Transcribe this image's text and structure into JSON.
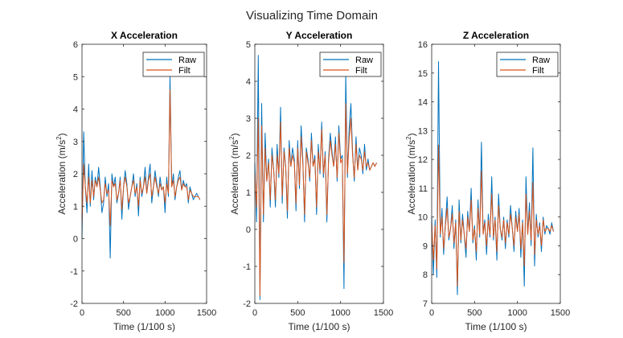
{
  "figure": {
    "title": "Visualizing Time Domain",
    "colors": {
      "raw": "#0072BD",
      "filt": "#D95319",
      "axis": "#262626"
    }
  },
  "chart_data": [
    {
      "type": "line",
      "title": "X Acceleration",
      "xlabel": "Time (1/100 s)",
      "ylabel": "Acceleration (m/s²)",
      "ylabel_parts": [
        "Acceleration (m/s",
        "2",
        ")"
      ],
      "xlim": [
        0,
        1500
      ],
      "ylim": [
        -2,
        6
      ],
      "xticks": [
        0,
        500,
        1000,
        1500
      ],
      "yticks": [
        -2,
        -1,
        0,
        1,
        2,
        3,
        4,
        5,
        6
      ],
      "grid": false,
      "legend": {
        "position": "top-right",
        "entries": [
          "Raw",
          "Filt"
        ]
      },
      "series": [
        {
          "name": "Raw",
          "color": "#0072BD",
          "x_step": 20,
          "values": [
            0.0,
            3.3,
            1.6,
            0.8,
            2.3,
            1.0,
            2.1,
            1.2,
            1.9,
            1.6,
            2.2,
            1.6,
            0.8,
            1.1,
            1.9,
            1.3,
            1.7,
            -0.6,
            2.0,
            1.6,
            1.9,
            1.1,
            1.4,
            1.9,
            0.6,
            1.6,
            2.1,
            1.7,
            0.9,
            1.3,
            1.6,
            2.0,
            1.3,
            1.7,
            0.7,
            1.9,
            1.3,
            1.6,
            2.2,
            1.4,
            1.9,
            2.3,
            1.1,
            1.6,
            2.1,
            1.7,
            1.3,
            1.9,
            1.5,
            1.6,
            0.8,
            1.9,
            1.3,
            5.0,
            1.6,
            2.0,
            1.2,
            1.6,
            1.9,
            2.1,
            1.5,
            1.8,
            1.6,
            1.7,
            1.1,
            1.6,
            1.4,
            1.2,
            1.3,
            1.4,
            1.3,
            1.2
          ]
        },
        {
          "name": "Filt",
          "color": "#D95319",
          "x_step": 20,
          "values": [
            0.5,
            2.3,
            1.6,
            1.1,
            1.9,
            1.1,
            1.8,
            1.3,
            1.8,
            1.6,
            1.9,
            1.5,
            1.1,
            1.2,
            1.7,
            1.4,
            1.5,
            0.4,
            1.8,
            1.6,
            1.7,
            1.2,
            1.4,
            1.8,
            0.9,
            1.6,
            1.9,
            1.6,
            1.1,
            1.3,
            1.6,
            1.8,
            1.4,
            1.6,
            1.0,
            1.8,
            1.4,
            1.6,
            1.9,
            1.4,
            1.8,
            2.0,
            1.3,
            1.6,
            1.9,
            1.6,
            1.4,
            1.7,
            1.5,
            1.6,
            1.1,
            1.7,
            1.4,
            4.6,
            1.6,
            1.8,
            1.3,
            1.6,
            1.8,
            1.9,
            1.5,
            1.7,
            1.6,
            1.6,
            1.2,
            1.5,
            1.4,
            1.3,
            1.3,
            1.3,
            1.3,
            1.2
          ]
        }
      ]
    },
    {
      "type": "line",
      "title": "Y Acceleration",
      "xlabel": "Time (1/100 s)",
      "ylabel": "Acceleration (m/s²)",
      "ylabel_parts": [
        "Acceleration (m/s",
        "2",
        ")"
      ],
      "xlim": [
        0,
        1500
      ],
      "ylim": [
        -2,
        5
      ],
      "xticks": [
        0,
        500,
        1000,
        1500
      ],
      "yticks": [
        -2,
        -1,
        0,
        1,
        2,
        3,
        4,
        5
      ],
      "grid": false,
      "legend": {
        "position": "top-right",
        "entries": [
          "Raw",
          "Filt"
        ]
      },
      "series": [
        {
          "name": "Raw",
          "color": "#0072BD",
          "x_step": 20,
          "values": [
            1.8,
            0.2,
            4.7,
            -1.9,
            3.4,
            0.2,
            2.6,
            1.3,
            1.9,
            0.6,
            2.2,
            1.6,
            0.6,
            2.3,
            1.4,
            3.3,
            0.7,
            2.2,
            1.7,
            0.3,
            2.4,
            1.7,
            2.2,
            1.9,
            0.5,
            2.4,
            1.1,
            2.8,
            1.9,
            0.2,
            2.2,
            1.9,
            1.3,
            2.6,
            1.7,
            2.0,
            0.4,
            2.3,
            1.5,
            2.9,
            1.4,
            2.1,
            0.2,
            1.9,
            2.6,
            2.1,
            1.7,
            2.5,
            1.3,
            2.8,
            1.9,
            2.0,
            -1.6,
            4.2,
            1.4,
            2.7,
            3.4,
            2.1,
            1.3,
            2.5,
            1.6,
            2.2,
            2.0,
            1.5,
            2.3,
            1.6,
            1.9,
            1.6,
            1.7,
            1.8,
            1.7,
            1.8
          ]
        },
        {
          "name": "Filt",
          "color": "#D95319",
          "x_step": 20,
          "values": [
            1.5,
            0.6,
            3.0,
            -1.8,
            2.8,
            0.4,
            2.2,
            1.3,
            1.8,
            0.8,
            2.0,
            1.6,
            0.8,
            2.0,
            1.5,
            2.9,
            0.9,
            2.1,
            1.7,
            0.5,
            2.2,
            1.7,
            2.0,
            1.8,
            0.7,
            2.2,
            1.2,
            2.5,
            1.8,
            0.4,
            2.1,
            1.8,
            1.4,
            2.4,
            1.7,
            1.9,
            0.6,
            2.1,
            1.6,
            2.7,
            1.5,
            2.0,
            0.4,
            1.8,
            2.4,
            2.0,
            1.7,
            2.3,
            1.4,
            2.6,
            1.8,
            1.9,
            -0.9,
            3.4,
            1.5,
            2.4,
            3.0,
            2.0,
            1.4,
            2.3,
            1.6,
            2.0,
            1.9,
            1.6,
            2.1,
            1.7,
            1.8,
            1.6,
            1.7,
            1.8,
            1.7,
            1.8
          ]
        }
      ]
    },
    {
      "type": "line",
      "title": "Z Acceleration",
      "xlabel": "Time (1/100 s)",
      "ylabel": "Acceleration (m/s²)",
      "ylabel_parts": [
        "Acceleration (m/s",
        "2",
        ")"
      ],
      "xlim": [
        0,
        1500
      ],
      "ylim": [
        7,
        16
      ],
      "xticks": [
        0,
        500,
        1000,
        1500
      ],
      "yticks": [
        7,
        8,
        9,
        10,
        11,
        12,
        13,
        14,
        15,
        16
      ],
      "grid": false,
      "legend": {
        "position": "top-right",
        "entries": [
          "Raw",
          "Filt"
        ]
      },
      "series": [
        {
          "name": "Raw",
          "color": "#0072BD",
          "x_step": 20,
          "values": [
            10.0,
            8.0,
            9.9,
            7.9,
            15.4,
            9.3,
            10.3,
            8.7,
            9.8,
            10.7,
            9.2,
            9.6,
            10.4,
            8.9,
            9.9,
            7.3,
            10.6,
            9.1,
            10.1,
            9.4,
            8.6,
            10.2,
            9.5,
            11.0,
            9.1,
            9.7,
            8.5,
            10.6,
            9.3,
            12.6,
            9.4,
            9.9,
            8.7,
            10.1,
            9.3,
            11.4,
            9.2,
            10.0,
            8.5,
            10.8,
            9.6,
            9.2,
            10.0,
            8.9,
            9.9,
            9.3,
            10.4,
            9.6,
            8.8,
            10.2,
            9.5,
            10.3,
            8.6,
            9.9,
            7.6,
            11.4,
            9.4,
            10.5,
            9.0,
            12.4,
            8.3,
            10.1,
            9.3,
            9.8,
            8.8,
            10.0,
            9.4,
            9.7,
            9.6,
            9.4,
            9.8,
            9.5
          ]
        },
        {
          "name": "Filt",
          "color": "#D95319",
          "x_step": 20,
          "values": [
            9.8,
            8.5,
            9.7,
            8.2,
            12.5,
            9.4,
            10.0,
            8.9,
            9.7,
            10.3,
            9.3,
            9.6,
            10.1,
            9.1,
            9.8,
            7.6,
            10.2,
            9.2,
            9.9,
            9.4,
            8.9,
            10.0,
            9.5,
            10.6,
            9.2,
            9.6,
            8.8,
            10.3,
            9.4,
            11.6,
            9.4,
            9.8,
            9.0,
            9.9,
            9.4,
            10.8,
            9.3,
            9.9,
            8.8,
            10.4,
            9.6,
            9.3,
            9.9,
            9.1,
            9.8,
            9.4,
            10.1,
            9.6,
            9.0,
            10.0,
            9.5,
            10.1,
            8.9,
            9.8,
            8.3,
            10.8,
            9.4,
            10.2,
            9.2,
            11.2,
            8.7,
            9.9,
            9.4,
            9.7,
            9.0,
            9.9,
            9.5,
            9.6,
            9.6,
            9.5,
            9.7,
            9.5
          ]
        }
      ]
    }
  ]
}
